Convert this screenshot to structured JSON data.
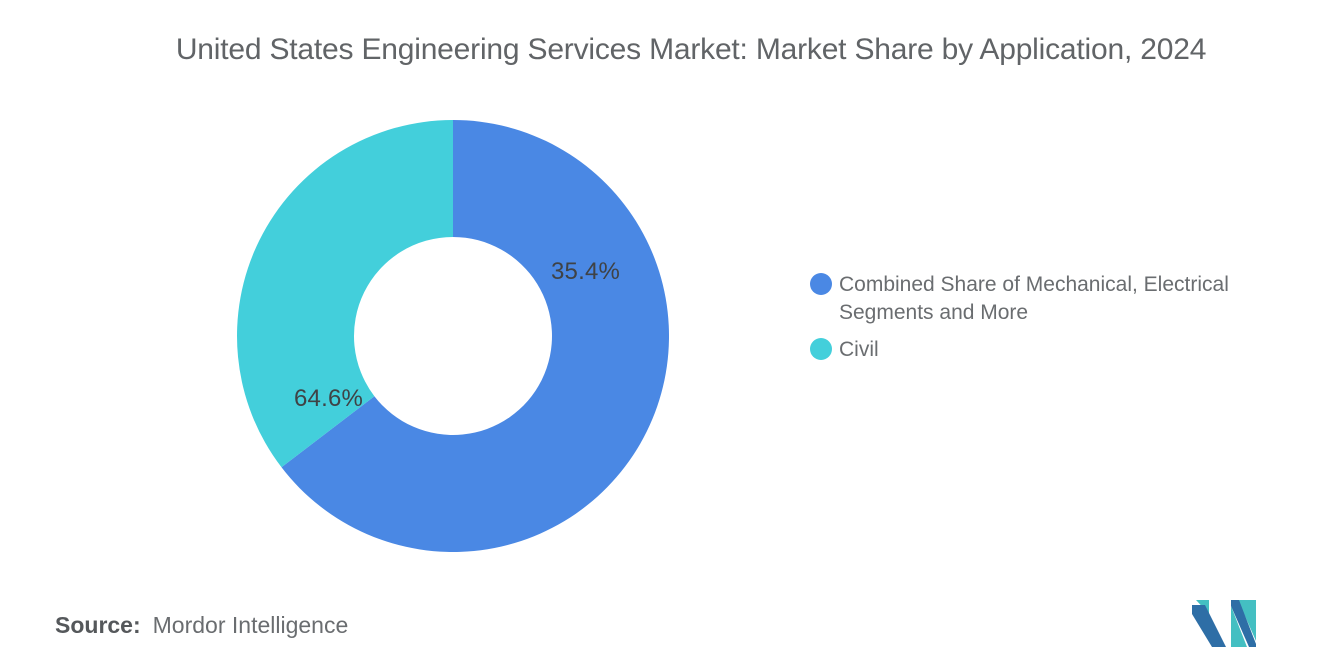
{
  "title": "United States Engineering Services Market: Market Share by Application, 2024",
  "chart_data": {
    "type": "pie",
    "subtype": "donut",
    "title": "United States Engineering Services Market: Market Share by Application, 2024",
    "categories": [
      "Combined Share of Mechanical, Electrical Segments and More",
      "Civil"
    ],
    "values": [
      64.6,
      35.4
    ],
    "unit": "%",
    "colors": [
      "#4A88E4",
      "#43CFDB"
    ],
    "slice_labels": [
      "64.6%",
      "35.4%"
    ],
    "start_angle": "12 o'clock, clockwise",
    "inner_radius_ratio": 0.46,
    "legend_position": "right"
  },
  "legend": {
    "items": [
      {
        "label": "Combined Share of Mechanical, Electrical Segments and More",
        "color": "#4A88E4"
      },
      {
        "label": "Civil",
        "color": "#43CFDB"
      }
    ]
  },
  "source": {
    "label": "Source:",
    "value": "Mordor Intelligence"
  },
  "logo": {
    "name": "mordor-intelligence-logo",
    "colors": {
      "blue": "#2E6EA6",
      "teal": "#44BFC2"
    }
  }
}
